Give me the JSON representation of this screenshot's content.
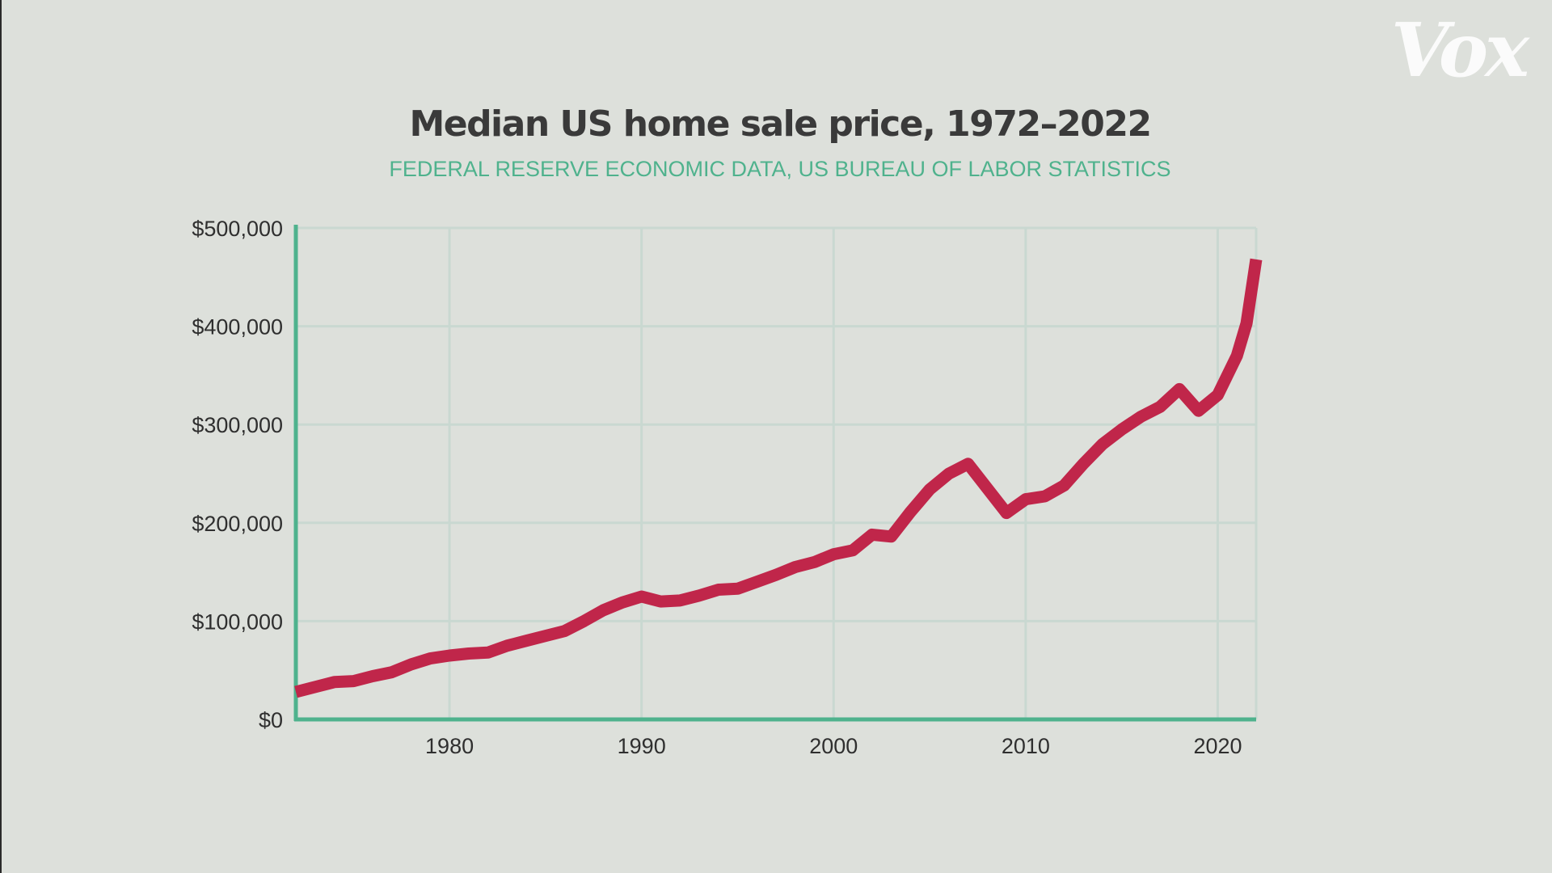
{
  "logo": {
    "text": "Vox"
  },
  "colors": {
    "background": "#dde0db",
    "title": "#3a3a3a",
    "subtitle": "#4fb28d",
    "axis": "#4fb28d",
    "grid": "#c9d8d1",
    "line": "#c0264a"
  },
  "chart_data": {
    "type": "line",
    "title": "Median US home sale price, 1972–2022",
    "subtitle": "FEDERAL RESERVE ECONOMIC DATA, US BUREAU OF LABOR STATISTICS",
    "xlabel": "",
    "ylabel": "",
    "xlim": [
      1972,
      2022
    ],
    "ylim": [
      0,
      500000
    ],
    "grid": true,
    "x_ticks": [
      1980,
      1990,
      2000,
      2010,
      2020
    ],
    "x_tick_labels": [
      "1980",
      "1990",
      "2000",
      "2010",
      "2020"
    ],
    "y_ticks": [
      0,
      100000,
      200000,
      300000,
      400000,
      500000
    ],
    "y_tick_labels": [
      "$0",
      "$100,000",
      "$200,000",
      "$300,000",
      "$400,000",
      "$500,000"
    ],
    "series": [
      {
        "color": "#c0264a",
        "x": [
          1972,
          1973,
          1974,
          1975,
          1976,
          1977,
          1978,
          1979,
          1980,
          1981,
          1982,
          1983,
          1984,
          1985,
          1986,
          1987,
          1988,
          1989,
          1990,
          1991,
          1992,
          1993,
          1994,
          1995,
          1996,
          1997,
          1998,
          1999,
          2000,
          2001,
          2002,
          2003,
          2004,
          2005,
          2006,
          2007,
          2008,
          2009,
          2010,
          2011,
          2012,
          2013,
          2014,
          2015,
          2016,
          2017,
          2018,
          2019,
          2020,
          2021,
          2021.5,
          2022
        ],
        "values": [
          28000,
          33000,
          38000,
          39000,
          44000,
          48000,
          56000,
          62000,
          65000,
          67000,
          68000,
          75000,
          80000,
          85000,
          90000,
          100000,
          111000,
          119000,
          125000,
          120000,
          121000,
          126000,
          132000,
          133000,
          140000,
          147000,
          155000,
          160000,
          168000,
          172000,
          188000,
          186000,
          211000,
          234000,
          250000,
          260000,
          235000,
          210000,
          224000,
          227000,
          238000,
          260000,
          280000,
          295000,
          308000,
          318000,
          336000,
          314000,
          330000,
          370000,
          403000,
          468000
        ]
      }
    ]
  }
}
